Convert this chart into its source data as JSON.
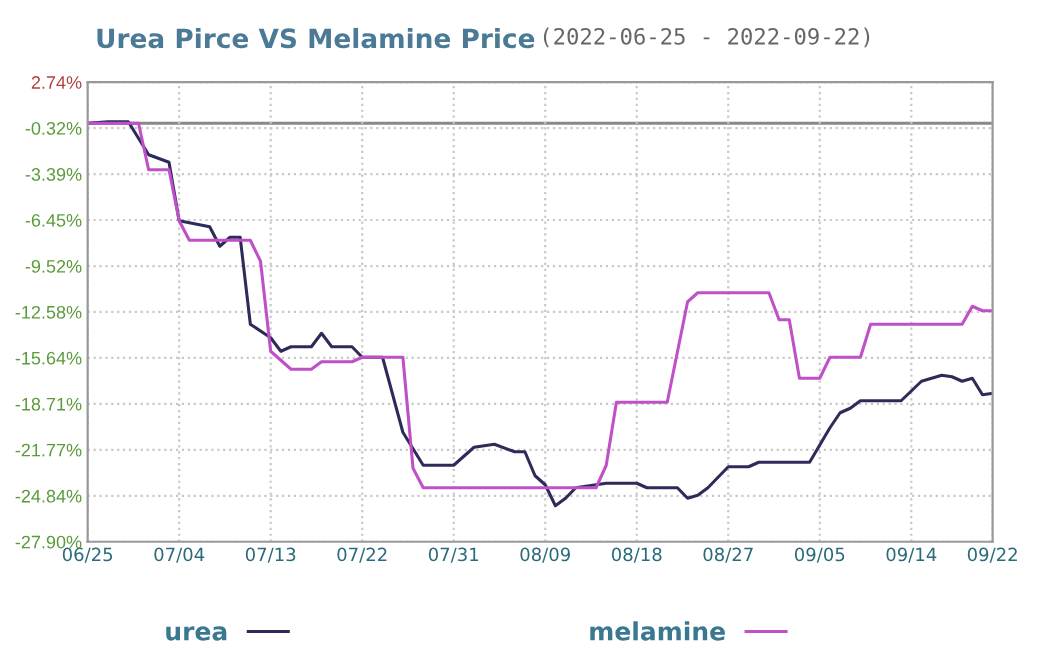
{
  "chart_data": {
    "type": "line",
    "title": "Urea Pirce VS Melamine Price",
    "subtitle": "(2022-06-25 - 2022-09-22)",
    "series": [
      {
        "name": "urea",
        "color": "#2e2b5a",
        "x": [
          "2022-06-25",
          "2022-06-27",
          "2022-06-29",
          "2022-07-01",
          "2022-07-03",
          "2022-07-04",
          "2022-07-07",
          "2022-07-08",
          "2022-07-09",
          "2022-07-10",
          "2022-07-11",
          "2022-07-13",
          "2022-07-14",
          "2022-07-15",
          "2022-07-17",
          "2022-07-18",
          "2022-07-19",
          "2022-07-21",
          "2022-07-22",
          "2022-07-24",
          "2022-07-26",
          "2022-07-28",
          "2022-07-31",
          "2022-08-02",
          "2022-08-04",
          "2022-08-06",
          "2022-08-07",
          "2022-08-08",
          "2022-08-09",
          "2022-08-10",
          "2022-08-11",
          "2022-08-12",
          "2022-08-15",
          "2022-08-18",
          "2022-08-19",
          "2022-08-22",
          "2022-08-23",
          "2022-08-24",
          "2022-08-25",
          "2022-08-27",
          "2022-08-29",
          "2022-08-30",
          "2022-09-04",
          "2022-09-06",
          "2022-09-07",
          "2022-09-08",
          "2022-09-09",
          "2022-09-13",
          "2022-09-15",
          "2022-09-17",
          "2022-09-18",
          "2022-09-19",
          "2022-09-20",
          "2022-09-21",
          "2022-09-22"
        ],
        "values": [
          0,
          0.1,
          0.1,
          -2.1,
          -2.6,
          -6.5,
          -6.9,
          -8.2,
          -7.6,
          -7.6,
          -13.4,
          -14.3,
          -15.2,
          -14.9,
          -14.9,
          -14.0,
          -14.9,
          -14.9,
          -15.6,
          -15.6,
          -20.6,
          -22.8,
          -22.8,
          -21.6,
          -21.4,
          -21.9,
          -21.9,
          -23.5,
          -24.1,
          -25.5,
          -25.0,
          -24.3,
          -24.0,
          -24.0,
          -24.3,
          -24.3,
          -25.0,
          -24.8,
          -24.3,
          -22.9,
          -22.9,
          -22.6,
          -22.6,
          -20.3,
          -19.3,
          -19.0,
          -18.5,
          -18.5,
          -17.2,
          -16.8,
          -16.9,
          -17.2,
          -17.0,
          -18.1,
          -18.0
        ]
      },
      {
        "name": "melamine",
        "color": "#c050c8",
        "x": [
          "2022-06-25",
          "2022-06-30",
          "2022-07-01",
          "2022-07-03",
          "2022-07-04",
          "2022-07-05",
          "2022-07-11",
          "2022-07-12",
          "2022-07-13",
          "2022-07-15",
          "2022-07-17",
          "2022-07-18",
          "2022-07-21",
          "2022-07-22",
          "2022-07-26",
          "2022-07-27",
          "2022-07-28",
          "2022-08-14",
          "2022-08-15",
          "2022-08-16",
          "2022-08-21",
          "2022-08-23",
          "2022-08-24",
          "2022-08-31",
          "2022-09-01",
          "2022-09-02",
          "2022-09-03",
          "2022-09-05",
          "2022-09-06",
          "2022-09-09",
          "2022-09-10",
          "2022-09-19",
          "2022-09-20",
          "2022-09-21",
          "2022-09-22"
        ],
        "values": [
          0,
          0,
          -3.1,
          -3.1,
          -6.5,
          -7.8,
          -7.8,
          -9.2,
          -15.2,
          -16.4,
          -16.4,
          -15.9,
          -15.9,
          -15.6,
          -15.6,
          -23.0,
          -24.3,
          -24.3,
          -22.8,
          -18.6,
          -18.6,
          -11.9,
          -11.3,
          -11.3,
          -13.1,
          -13.1,
          -17.0,
          -17.0,
          -15.6,
          -15.6,
          -13.4,
          -13.4,
          -12.2,
          -12.5,
          -12.5
        ]
      }
    ],
    "xlim": [
      "2022-06-25",
      "2022-09-22"
    ],
    "xticks": [
      {
        "value": "2022-06-25",
        "label": "06/25"
      },
      {
        "value": "2022-07-04",
        "label": "07/04"
      },
      {
        "value": "2022-07-13",
        "label": "07/13"
      },
      {
        "value": "2022-07-22",
        "label": "07/22"
      },
      {
        "value": "2022-07-31",
        "label": "07/31"
      },
      {
        "value": "2022-08-09",
        "label": "08/09"
      },
      {
        "value": "2022-08-18",
        "label": "08/18"
      },
      {
        "value": "2022-08-27",
        "label": "08/27"
      },
      {
        "value": "2022-09-05",
        "label": "09/05"
      },
      {
        "value": "2022-09-14",
        "label": "09/14"
      },
      {
        "value": "2022-09-22",
        "label": "09/22"
      }
    ],
    "ylim": [
      -27.9,
      2.74
    ],
    "yticks": [
      {
        "value": 2.74,
        "label": "2.74%"
      },
      {
        "value": -0.32,
        "label": "-0.32%"
      },
      {
        "value": -3.39,
        "label": "-3.39%"
      },
      {
        "value": -6.45,
        "label": "-6.45%"
      },
      {
        "value": -9.52,
        "label": "-9.52%"
      },
      {
        "value": -12.58,
        "label": "-12.58%"
      },
      {
        "value": -15.64,
        "label": "-15.64%"
      },
      {
        "value": -18.71,
        "label": "-18.71%"
      },
      {
        "value": -21.77,
        "label": "-21.77%"
      },
      {
        "value": -24.84,
        "label": "-24.84%"
      },
      {
        "value": -27.9,
        "label": "-27.90%"
      }
    ],
    "ref_lines": [
      {
        "axis": "y",
        "value": 0,
        "label": null,
        "color": "#888888",
        "line_style": "solid"
      }
    ],
    "grid": true,
    "legend": "bottom",
    "marker": "none",
    "line_style": "solid"
  }
}
